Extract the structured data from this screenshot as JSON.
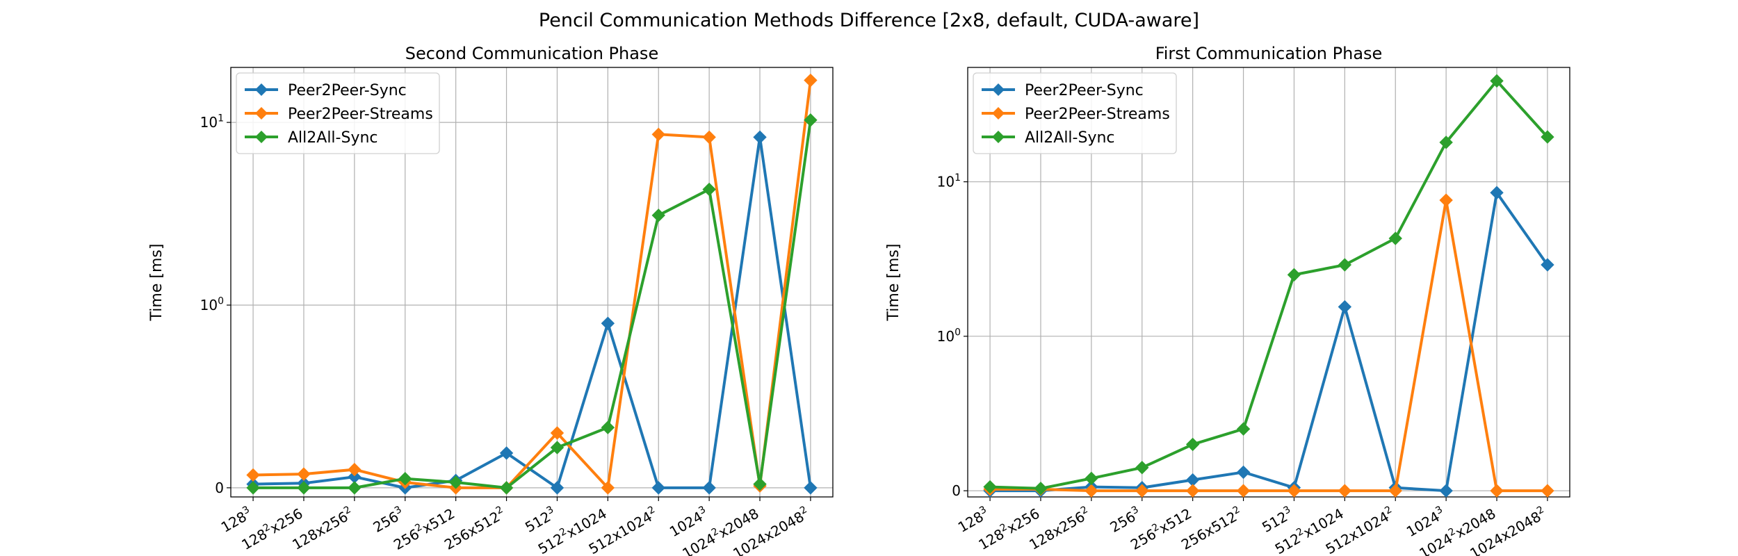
{
  "figure": {
    "title": "Pencil Communication Methods Difference [2x8, default, CUDA-aware]"
  },
  "colors": {
    "sync": "#1f77b4",
    "streams": "#ff7f0e",
    "all2all": "#2ca02c",
    "grid": "#b0b0b0"
  },
  "chart_data": [
    {
      "type": "line",
      "title": "Second Communication Phase",
      "xlabel": "",
      "ylabel": "Time [ms]",
      "yscale": "symlog",
      "ylim": [
        -0.05,
        20
      ],
      "grid": true,
      "legend": "top-left",
      "marker": "diamond",
      "categories": [
        "128^3",
        "128^2x256",
        "128x256^2",
        "256^3",
        "256^2x512",
        "256x512^2",
        "512^3",
        "512^2x1024",
        "512x1024^2",
        "1024^3",
        "1024^2x2048",
        "1024x2048^2"
      ],
      "yticks": [
        {
          "value": 0,
          "label": "0"
        },
        {
          "value": 1,
          "label": "10^0"
        },
        {
          "value": 10,
          "label": "10^1"
        }
      ],
      "series": [
        {
          "name": "Peer2Peer-Sync",
          "color": "#1f77b4",
          "values": [
            0.02,
            0.025,
            0.06,
            0.0,
            0.04,
            0.19,
            0.0,
            0.9,
            0.0,
            0.0,
            8.3,
            0.0
          ]
        },
        {
          "name": "Peer2Peer-Streams",
          "color": "#ff7f0e",
          "values": [
            0.07,
            0.075,
            0.1,
            0.03,
            0.0,
            0.0,
            0.3,
            0.0,
            8.6,
            8.3,
            0.01,
            17.0
          ]
        },
        {
          "name": "All2All-Sync",
          "color": "#2ca02c",
          "values": [
            0.0,
            0.0,
            0.0,
            0.05,
            0.03,
            0.0,
            0.22,
            0.33,
            3.1,
            4.3,
            0.02,
            10.3
          ]
        }
      ]
    },
    {
      "type": "line",
      "title": "First Communication Phase",
      "xlabel": "",
      "ylabel": "Time [ms]",
      "yscale": "symlog",
      "ylim": [
        -0.04,
        55
      ],
      "grid": true,
      "legend": "top-left",
      "marker": "diamond",
      "categories": [
        "128^3",
        "128^2x256",
        "128x256^2",
        "256^3",
        "256^2x512",
        "256x512^2",
        "512^3",
        "512^2x1024",
        "512x1024^2",
        "1024^3",
        "1024^2x2048",
        "1024x2048^2"
      ],
      "yticks": [
        {
          "value": 0,
          "label": "0"
        },
        {
          "value": 1,
          "label": "10^0"
        },
        {
          "value": 10,
          "label": "10^1"
        }
      ],
      "series": [
        {
          "name": "Peer2Peer-Sync",
          "color": "#1f77b4",
          "values": [
            0.0,
            0.0,
            0.025,
            0.02,
            0.07,
            0.12,
            0.02,
            1.55,
            0.02,
            0.0,
            8.5,
            2.9
          ]
        },
        {
          "name": "Peer2Peer-Streams",
          "color": "#ff7f0e",
          "values": [
            0.01,
            0.01,
            0.0,
            0.0,
            0.0,
            0.0,
            0.0,
            0.0,
            0.0,
            7.6,
            0.0,
            0.0
          ]
        },
        {
          "name": "All2All-Sync",
          "color": "#2ca02c",
          "values": [
            0.025,
            0.015,
            0.08,
            0.15,
            0.3,
            0.4,
            2.5,
            2.9,
            4.3,
            18.0,
            45.0,
            19.5
          ]
        }
      ]
    }
  ]
}
